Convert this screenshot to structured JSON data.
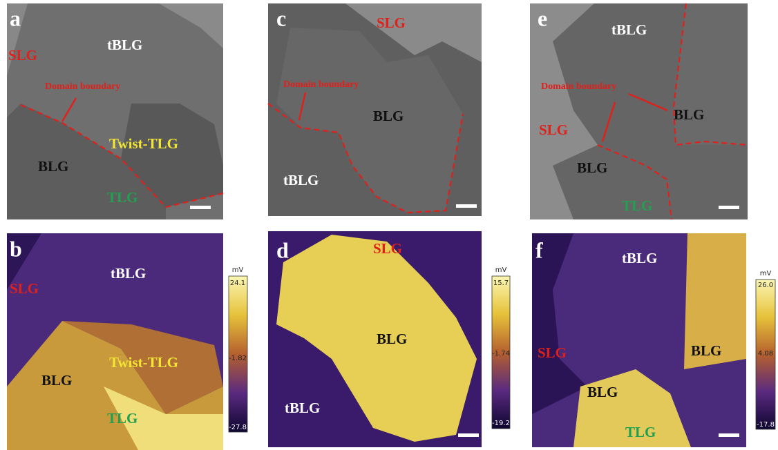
{
  "panels": [
    {
      "letter": "a",
      "labels": [
        "tBLG",
        "SLG",
        "Domain boundary",
        "Twist-TLG",
        "BLG",
        "TLG"
      ]
    },
    {
      "letter": "b",
      "labels": [
        "tBLG",
        "SLG",
        "Twist-TLG",
        "BLG",
        "TLG"
      ],
      "colorbar": {
        "unit": "mV",
        "ticks": [
          24.1,
          -1.82,
          -27.8
        ]
      }
    },
    {
      "letter": "c",
      "labels": [
        "SLG",
        "Domain boundary",
        "BLG",
        "tBLG"
      ]
    },
    {
      "letter": "d",
      "labels": [
        "SLG",
        "BLG",
        "tBLG"
      ],
      "colorbar": {
        "unit": "mV",
        "ticks": [
          15.7,
          -1.74,
          -19.2
        ]
      }
    },
    {
      "letter": "e",
      "labels": [
        "tBLG",
        "Domain boundary",
        "BLG",
        "SLG",
        "BLG",
        "TLG"
      ]
    },
    {
      "letter": "f",
      "labels": [
        "tBLG",
        "SLG",
        "BLG",
        "BLG",
        "TLG"
      ],
      "colorbar": {
        "unit": "mV",
        "ticks": [
          {
            "value": 26,
            "label": "26.0"
          },
          4.08,
          -17.8
        ]
      }
    }
  ]
}
